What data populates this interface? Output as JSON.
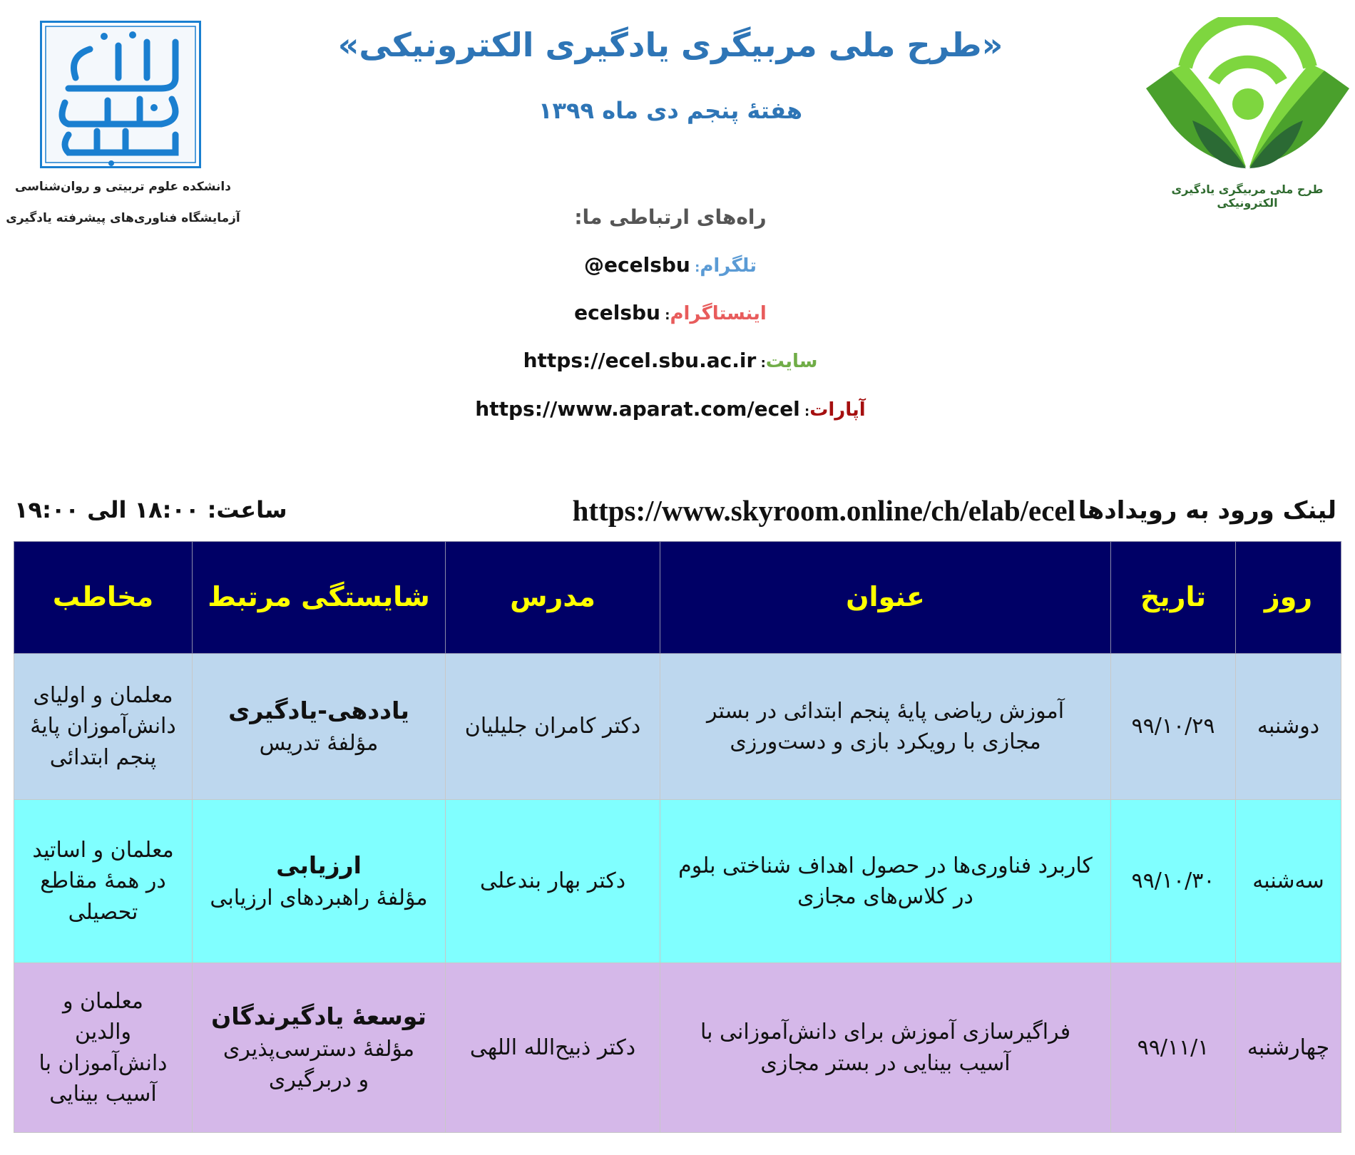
{
  "logos": {
    "left": {
      "lettering": "دانشگاه شهید بهشتی",
      "color": "#1a7fd0"
    },
    "right": {
      "caption": "طرح ملی مربیگری یادگیری الکترونیکی",
      "colors": [
        "#7ed63f",
        "#4aa02c",
        "#2b6a34"
      ]
    }
  },
  "left_captions": [
    "دانشکده علوم تربیتی و روان‌شناسی",
    "آزمایشگاه فناوری‌های پیشرفته یادگیری"
  ],
  "header": {
    "title": "«طرح ملی مربیگری یادگیری الکترونیکی»",
    "subtitle": "هفتهٔ پنجم دی ماه ۱۳۹۹"
  },
  "contacts": {
    "heading": "راه‌های ارتباطی ما:",
    "items": [
      {
        "label": "تلگرام",
        "value": "@ecelsbu",
        "color": "#5b9bd5"
      },
      {
        "label": "اینستاگرام",
        "value": "ecelsbu",
        "color": "#e85c5c"
      },
      {
        "label": "سایت",
        "value": "https://ecel.sbu.ac.ir",
        "color": "#70ad47"
      },
      {
        "label": "آپارات",
        "value": "https://www.aparat.com/ecel",
        "color": "#a50f0f"
      }
    ]
  },
  "event_link": {
    "label": "لینک ورود به رویدادها",
    "url": "https://www.skyroom.online/ch/elab/ecel",
    "time": "ساعت: ۱۸:۰۰ الی ۱۹:۰۰"
  },
  "table": {
    "header_bg": "#000066",
    "header_color": "#ffff00",
    "columns": [
      "روز",
      "تاریخ",
      "عنوان",
      "مدرس",
      "شایستگی مرتبط",
      "مخاطب"
    ],
    "rows": [
      {
        "day": "دوشنبه",
        "date": "۹۹/۱۰/۲۹",
        "title": "آموزش ریاضی پایهٔ پنجم ابتدائی در بستر\nمجازی با رویکرد بازی و دست‌ورزی",
        "teacher": "دکتر کامران جلیلیان",
        "competency": "یاددهی-یادگیری",
        "component": "مؤلفهٔ تدریس",
        "audience": "معلمان و اولیای\nدانش‌آموزان پایهٔ\nپنجم ابتدائی",
        "bg": "#bdd7ee"
      },
      {
        "day": "سه‌شنبه",
        "date": "۹۹/۱۰/۳۰",
        "title": "کاربرد فناوری‌ها در حصول اهداف شناختی بلوم\nدر کلاس‌های مجازی",
        "teacher": "دکتر بهار بندعلی",
        "competency": "ارزیابی",
        "component": "مؤلفهٔ راهبردهای ارزیابی",
        "audience": "معلمان و اساتید\nدر همهٔ مقاطع\nتحصیلی",
        "bg": "#80ffff"
      },
      {
        "day": "چهارشنبه",
        "date": "۹۹/۱۱/۱",
        "title": "فراگیرسازی آموزش برای دانش‌آموزانی با\nآسیب بینایی در بستر مجازی",
        "teacher": "دکتر ذبیح‌الله اللهی",
        "competency": "توسعهٔ یادگیرندگان",
        "component": "مؤلفهٔ دسترسی‌پذیری\nو دربرگیری",
        "audience": "معلمان و\nوالدین\nدانش‌آموزان با\nآسیب بینایی",
        "bg": "#d5b8e9"
      }
    ]
  }
}
